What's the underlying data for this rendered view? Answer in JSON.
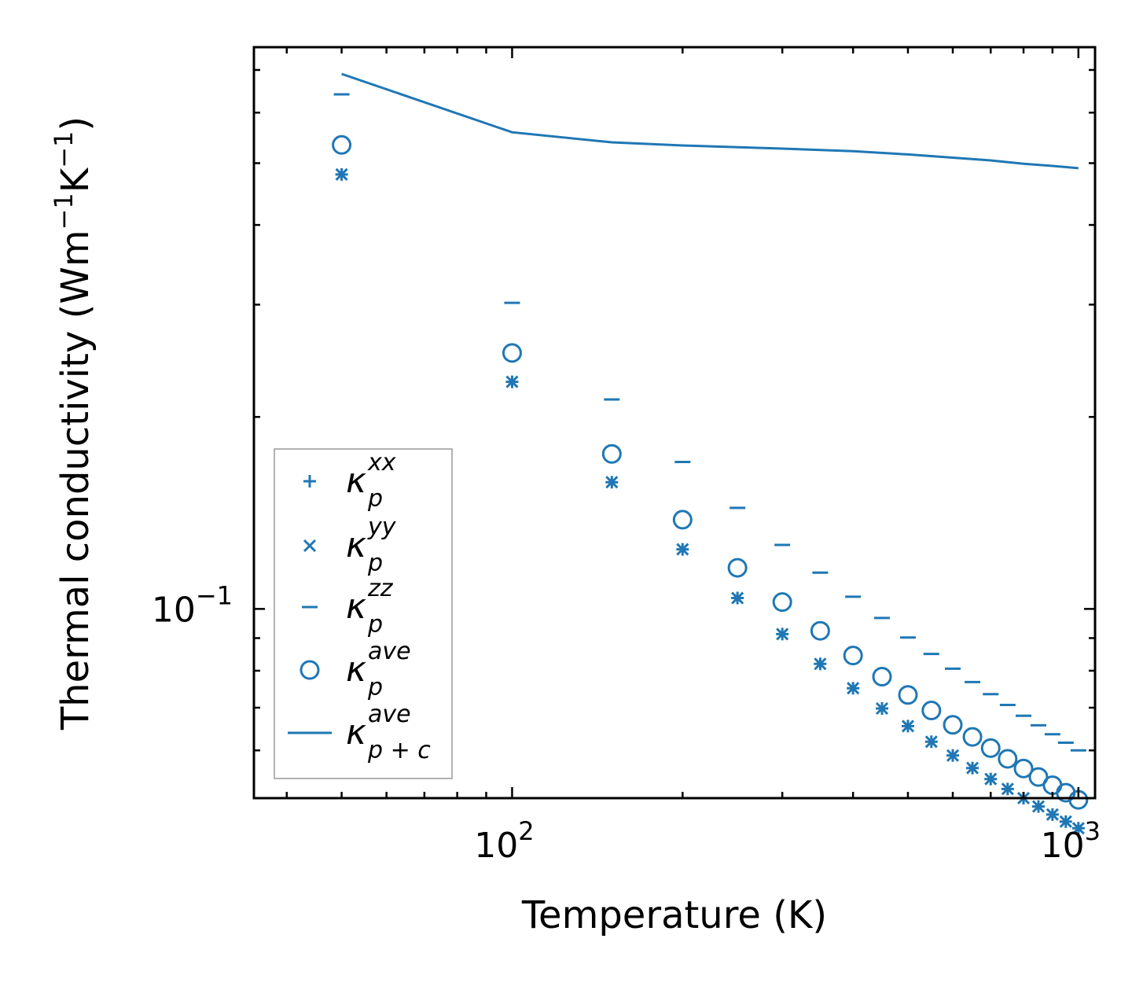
{
  "chart_data": {
    "type": "scatter",
    "title": "",
    "xlabel": "Temperature (K)",
    "ylabel": "Thermal conductivity (Wm",
    "ylabel_sup1": "−1",
    "ylabel_mid": "K",
    "ylabel_sup2": "−1",
    "ylabel_end": ")",
    "xscale": "log",
    "yscale": "log",
    "xlim": [
      35,
      1070
    ],
    "ylim": [
      0.0505,
      0.76
    ],
    "grid": false,
    "legend_position": "lower-left",
    "x_ticks": [
      {
        "base": "10",
        "exp": "2",
        "value": 100
      },
      {
        "base": "10",
        "exp": "3",
        "value": 1000
      }
    ],
    "y_ticks": [
      {
        "base": "10",
        "exp": "−1",
        "value": 0.1
      }
    ],
    "x": [
      50,
      100,
      150,
      200,
      250,
      300,
      350,
      400,
      450,
      500,
      550,
      600,
      650,
      700,
      750,
      800,
      850,
      900,
      950,
      1000
    ],
    "series": [
      {
        "name": "κ_p^xx",
        "marker": "plus",
        "values": [
          0.48,
          0.227,
          0.158,
          0.124,
          0.104,
          0.0913,
          0.082,
          0.0751,
          0.0698,
          0.0655,
          0.0619,
          0.0589,
          0.0563,
          0.0541,
          0.0522,
          0.0505,
          0.049,
          0.0476,
          0.0464,
          0.0453
        ]
      },
      {
        "name": "κ_p^yy",
        "marker": "x",
        "values": [
          0.48,
          0.227,
          0.158,
          0.124,
          0.104,
          0.0913,
          0.082,
          0.0751,
          0.0698,
          0.0655,
          0.0619,
          0.0589,
          0.0563,
          0.0541,
          0.0522,
          0.0505,
          0.049,
          0.0476,
          0.0464,
          0.0453
        ]
      },
      {
        "name": "κ_p^zz",
        "marker": "hline",
        "values": [
          0.641,
          0.302,
          0.213,
          0.17,
          0.144,
          0.126,
          0.114,
          0.1045,
          0.0968,
          0.0902,
          0.085,
          0.0806,
          0.0768,
          0.0735,
          0.0707,
          0.068,
          0.0657,
          0.0636,
          0.0617,
          0.06
        ]
      },
      {
        "name": "κ_p^ave",
        "marker": "circle",
        "values": [
          0.534,
          0.252,
          0.175,
          0.138,
          0.116,
          0.1025,
          0.0924,
          0.0845,
          0.0783,
          0.0733,
          0.0693,
          0.0658,
          0.063,
          0.0605,
          0.0582,
          0.0562,
          0.0545,
          0.0529,
          0.0515,
          0.0502
        ]
      },
      {
        "name": "κ_p+c^ave",
        "marker": "line",
        "x": [
          50,
          100,
          150,
          200,
          300,
          400,
          500,
          600,
          700,
          800,
          900,
          1000
        ],
        "values": [
          0.69,
          0.559,
          0.539,
          0.533,
          0.527,
          0.522,
          0.516,
          0.51,
          0.505,
          0.499,
          0.495,
          0.491
        ]
      }
    ],
    "legend": [
      {
        "name": "κ",
        "sub": "p",
        "sup": "xx",
        "marker": "plus"
      },
      {
        "name": "κ",
        "sub": "p",
        "sup": "yy",
        "marker": "x"
      },
      {
        "name": "κ",
        "sub": "p",
        "sup": "zz",
        "marker": "hline"
      },
      {
        "name": "κ",
        "sub": "p",
        "sup": "ave",
        "marker": "circle"
      },
      {
        "name": "κ",
        "sub": "p + c",
        "sup": "ave",
        "marker": "line"
      }
    ],
    "colors": {
      "series": "#1f77b4",
      "axes": "#000000",
      "legend_border": "#999999"
    }
  }
}
